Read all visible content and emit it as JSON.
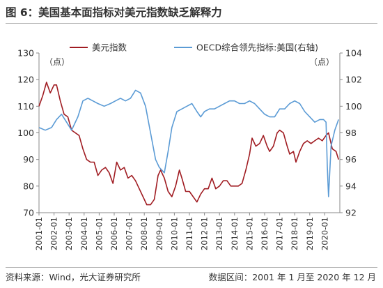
{
  "figure": {
    "title": "图 6：美国基本面指标对美元指数缺乏解释力",
    "source": "资料来源：Wind，光大证券研究所",
    "date_range": "数据区间：2001 年 1 月至 2020 年 12 月"
  },
  "colors": {
    "usd": "#a01c22",
    "oecd": "#5b9bd5",
    "axis": "#888888",
    "text": "#333333"
  },
  "chart_data": {
    "type": "line",
    "left_unit": "（点）",
    "right_unit": "（点）",
    "legend": [
      "美元指数",
      "OECD综合领先指标:美国(右轴)"
    ],
    "x_ticks": [
      "2001-01",
      "2002-01",
      "2003-01",
      "2004-01",
      "2005-01",
      "2006-01",
      "2007-01",
      "2008-01",
      "2009-01",
      "2010-01",
      "2011-01",
      "2012-01",
      "2013-01",
      "2014-01",
      "2015-01",
      "2016-01",
      "2017-01",
      "2018-01",
      "2019-01",
      "2020-01"
    ],
    "ylim_left": [
      70,
      130
    ],
    "ylim_right": [
      92,
      104
    ],
    "yticks_left": [
      "70",
      "80",
      "90",
      "100",
      "110",
      "120",
      "130"
    ],
    "yticks_right": [
      "92",
      "94",
      "96",
      "98",
      "100",
      "102",
      "104"
    ],
    "x_range": [
      "2001-01",
      "2021-01"
    ],
    "series": [
      {
        "name": "美元指数",
        "axis": "left",
        "points": [
          [
            "2001-01",
            110
          ],
          [
            "2001-04",
            114
          ],
          [
            "2001-07",
            119
          ],
          [
            "2001-10",
            115
          ],
          [
            "2002-01",
            118
          ],
          [
            "2002-03",
            118
          ],
          [
            "2002-06",
            112
          ],
          [
            "2002-09",
            107
          ],
          [
            "2002-12",
            106
          ],
          [
            "2003-03",
            101
          ],
          [
            "2003-06",
            100
          ],
          [
            "2003-09",
            99
          ],
          [
            "2003-12",
            94
          ],
          [
            "2004-03",
            90
          ],
          [
            "2004-06",
            89
          ],
          [
            "2004-09",
            89
          ],
          [
            "2004-12",
            84
          ],
          [
            "2005-03",
            86
          ],
          [
            "2005-06",
            87
          ],
          [
            "2005-09",
            85
          ],
          [
            "2005-12",
            81
          ],
          [
            "2006-03",
            89
          ],
          [
            "2006-06",
            86
          ],
          [
            "2006-09",
            87
          ],
          [
            "2006-12",
            83
          ],
          [
            "2007-03",
            84
          ],
          [
            "2007-06",
            82
          ],
          [
            "2007-09",
            79
          ],
          [
            "2007-12",
            76
          ],
          [
            "2008-03",
            73
          ],
          [
            "2008-06",
            73
          ],
          [
            "2008-09",
            75
          ],
          [
            "2008-12",
            84
          ],
          [
            "2009-02",
            86
          ],
          [
            "2009-05",
            83
          ],
          [
            "2009-08",
            78
          ],
          [
            "2009-11",
            76
          ],
          [
            "2010-02",
            80
          ],
          [
            "2010-05",
            86
          ],
          [
            "2010-07",
            83
          ],
          [
            "2010-10",
            78
          ],
          [
            "2011-01",
            78
          ],
          [
            "2011-04",
            76
          ],
          [
            "2011-07",
            74
          ],
          [
            "2011-10",
            77
          ],
          [
            "2012-01",
            79
          ],
          [
            "2012-04",
            79
          ],
          [
            "2012-07",
            83
          ],
          [
            "2012-10",
            79
          ],
          [
            "2013-01",
            80
          ],
          [
            "2013-04",
            82
          ],
          [
            "2013-07",
            82
          ],
          [
            "2013-10",
            80
          ],
          [
            "2014-01",
            80
          ],
          [
            "2014-04",
            80
          ],
          [
            "2014-07",
            81
          ],
          [
            "2014-10",
            86
          ],
          [
            "2015-01",
            92
          ],
          [
            "2015-03",
            98
          ],
          [
            "2015-06",
            95
          ],
          [
            "2015-09",
            96
          ],
          [
            "2015-12",
            99
          ],
          [
            "2016-03",
            95
          ],
          [
            "2016-05",
            93
          ],
          [
            "2016-08",
            95
          ],
          [
            "2016-11",
            100
          ],
          [
            "2017-01",
            101
          ],
          [
            "2017-04",
            100
          ],
          [
            "2017-07",
            95
          ],
          [
            "2017-09",
            92
          ],
          [
            "2017-12",
            93
          ],
          [
            "2018-02",
            89
          ],
          [
            "2018-05",
            93
          ],
          [
            "2018-08",
            96
          ],
          [
            "2018-11",
            97
          ],
          [
            "2019-02",
            96
          ],
          [
            "2019-05",
            97
          ],
          [
            "2019-08",
            98
          ],
          [
            "2019-11",
            97
          ],
          [
            "2020-02",
            99
          ],
          [
            "2020-04",
            100
          ],
          [
            "2020-07",
            94
          ],
          [
            "2020-10",
            93
          ],
          [
            "2020-12",
            90
          ]
        ]
      },
      {
        "name": "OECD综合领先指标:美国(右轴)",
        "axis": "right",
        "points": [
          [
            "2001-01",
            98.4
          ],
          [
            "2001-06",
            98.2
          ],
          [
            "2001-11",
            98.4
          ],
          [
            "2002-03",
            99.0
          ],
          [
            "2002-07",
            99.4
          ],
          [
            "2002-11",
            98.8
          ],
          [
            "2003-03",
            98.2
          ],
          [
            "2003-08",
            99.2
          ],
          [
            "2003-12",
            100.4
          ],
          [
            "2004-04",
            100.6
          ],
          [
            "2004-08",
            100.4
          ],
          [
            "2004-12",
            100.2
          ],
          [
            "2005-05",
            100.0
          ],
          [
            "2005-10",
            100.2
          ],
          [
            "2006-02",
            100.4
          ],
          [
            "2006-06",
            100.6
          ],
          [
            "2006-10",
            100.4
          ],
          [
            "2007-02",
            100.6
          ],
          [
            "2007-06",
            101.2
          ],
          [
            "2007-10",
            101.0
          ],
          [
            "2008-02",
            100.0
          ],
          [
            "2008-06",
            98.0
          ],
          [
            "2008-10",
            96.0
          ],
          [
            "2009-01",
            95.4
          ],
          [
            "2009-05",
            95.0
          ],
          [
            "2009-08",
            96.6
          ],
          [
            "2009-11",
            98.4
          ],
          [
            "2010-03",
            99.6
          ],
          [
            "2010-07",
            99.8
          ],
          [
            "2010-11",
            100.0
          ],
          [
            "2011-03",
            100.2
          ],
          [
            "2011-07",
            99.6
          ],
          [
            "2011-10",
            99.2
          ],
          [
            "2012-01",
            99.6
          ],
          [
            "2012-05",
            99.8
          ],
          [
            "2012-09",
            99.8
          ],
          [
            "2013-01",
            100.0
          ],
          [
            "2013-05",
            100.2
          ],
          [
            "2013-09",
            100.4
          ],
          [
            "2014-01",
            100.4
          ],
          [
            "2014-05",
            100.2
          ],
          [
            "2014-09",
            100.2
          ],
          [
            "2015-01",
            100.4
          ],
          [
            "2015-05",
            100.2
          ],
          [
            "2015-09",
            99.8
          ],
          [
            "2016-01",
            99.4
          ],
          [
            "2016-05",
            99.2
          ],
          [
            "2016-09",
            99.2
          ],
          [
            "2017-01",
            99.8
          ],
          [
            "2017-05",
            99.8
          ],
          [
            "2017-09",
            100.2
          ],
          [
            "2018-01",
            100.4
          ],
          [
            "2018-05",
            100.2
          ],
          [
            "2018-09",
            99.6
          ],
          [
            "2019-01",
            99.2
          ],
          [
            "2019-05",
            98.8
          ],
          [
            "2019-09",
            99.0
          ],
          [
            "2019-12",
            99.0
          ],
          [
            "2020-02",
            98.8
          ],
          [
            "2020-03",
            95.5
          ],
          [
            "2020-04",
            93.2
          ],
          [
            "2020-06",
            97.0
          ],
          [
            "2020-09",
            98.2
          ],
          [
            "2020-12",
            99.0
          ]
        ]
      }
    ]
  }
}
